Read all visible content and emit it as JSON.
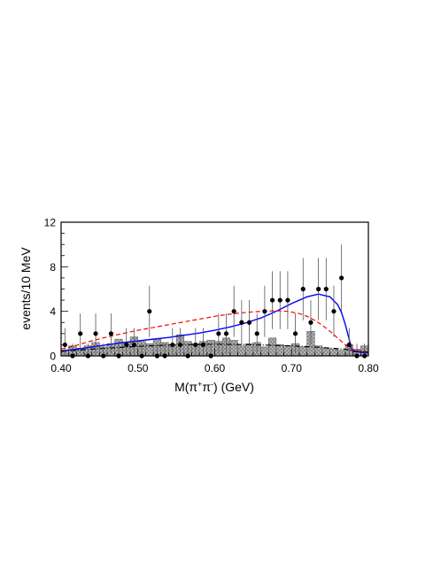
{
  "chart_data": {
    "type": "scatter",
    "xlabel": "M(π⁺π⁻) (GeV)",
    "xlabel_parts": {
      "pre": "M(π",
      "sup1": "+",
      "mid": "π",
      "sup2": "-",
      "post": ") (GeV)"
    },
    "ylabel": "events/10 MeV",
    "xlim": [
      0.4,
      0.8
    ],
    "ylim": [
      0,
      12
    ],
    "xticks": [
      {
        "value": 0.4,
        "label": "0.40"
      },
      {
        "value": 0.5,
        "label": "0.50"
      },
      {
        "value": 0.6,
        "label": "0.60"
      },
      {
        "value": 0.7,
        "label": "0.70"
      },
      {
        "value": 0.8,
        "label": "0.80"
      }
    ],
    "yticks": [
      {
        "value": 0,
        "label": "0"
      },
      {
        "value": 4,
        "label": "4"
      },
      {
        "value": 8,
        "label": "8"
      },
      {
        "value": 12,
        "label": "12"
      }
    ],
    "grid": false,
    "colors": {
      "total_fit": "#0000ff",
      "signal": "#ff0000",
      "background": "#000000",
      "histogram": "#b0b0b0",
      "data": "#000000"
    },
    "data_points": [
      {
        "x": 0.405,
        "y": 1,
        "err": 1.5
      },
      {
        "x": 0.415,
        "y": 0,
        "err": 1.1
      },
      {
        "x": 0.425,
        "y": 2,
        "err": 1.8
      },
      {
        "x": 0.435,
        "y": 0,
        "err": 1.1
      },
      {
        "x": 0.445,
        "y": 2,
        "err": 1.8
      },
      {
        "x": 0.455,
        "y": 0,
        "err": 1.1
      },
      {
        "x": 0.465,
        "y": 2,
        "err": 1.8
      },
      {
        "x": 0.475,
        "y": 0,
        "err": 1.1
      },
      {
        "x": 0.485,
        "y": 1,
        "err": 1.5
      },
      {
        "x": 0.495,
        "y": 1,
        "err": 1.5
      },
      {
        "x": 0.505,
        "y": 0,
        "err": 1.1
      },
      {
        "x": 0.515,
        "y": 4,
        "err": 2.3
      },
      {
        "x": 0.525,
        "y": 0,
        "err": 1.1
      },
      {
        "x": 0.535,
        "y": 0,
        "err": 1.1
      },
      {
        "x": 0.545,
        "y": 1,
        "err": 1.5
      },
      {
        "x": 0.555,
        "y": 1,
        "err": 1.5
      },
      {
        "x": 0.565,
        "y": 0,
        "err": 1.1
      },
      {
        "x": 0.575,
        "y": 1,
        "err": 1.5
      },
      {
        "x": 0.585,
        "y": 1,
        "err": 1.5
      },
      {
        "x": 0.595,
        "y": 0,
        "err": 1.1
      },
      {
        "x": 0.605,
        "y": 2,
        "err": 1.8
      },
      {
        "x": 0.615,
        "y": 2,
        "err": 1.8
      },
      {
        "x": 0.625,
        "y": 4,
        "err": 2.3
      },
      {
        "x": 0.635,
        "y": 3,
        "err": 2.0
      },
      {
        "x": 0.645,
        "y": 3,
        "err": 2.0
      },
      {
        "x": 0.655,
        "y": 2,
        "err": 1.8
      },
      {
        "x": 0.665,
        "y": 4,
        "err": 2.3
      },
      {
        "x": 0.675,
        "y": 5,
        "err": 2.6
      },
      {
        "x": 0.685,
        "y": 5,
        "err": 2.6
      },
      {
        "x": 0.695,
        "y": 5,
        "err": 2.6
      },
      {
        "x": 0.705,
        "y": 2,
        "err": 1.8
      },
      {
        "x": 0.715,
        "y": 6,
        "err": 2.8
      },
      {
        "x": 0.725,
        "y": 3,
        "err": 2.0
      },
      {
        "x": 0.735,
        "y": 6,
        "err": 2.8
      },
      {
        "x": 0.745,
        "y": 6,
        "err": 2.8
      },
      {
        "x": 0.755,
        "y": 4,
        "err": 2.3
      },
      {
        "x": 0.765,
        "y": 7,
        "err": 3.0
      },
      {
        "x": 0.775,
        "y": 1,
        "err": 1.5
      },
      {
        "x": 0.785,
        "y": 0,
        "err": 1.1
      },
      {
        "x": 0.795,
        "y": 0,
        "err": 1.1
      }
    ],
    "histogram": {
      "bin_width": 0.01,
      "x_start": 0.4,
      "values": [
        0.5,
        0.9,
        0.7,
        0.9,
        1.2,
        0.8,
        1.1,
        1.5,
        1.2,
        1.7,
        1.3,
        1.1,
        1.5,
        1.2,
        1.0,
        1.9,
        1.3,
        1.1,
        1.3,
        1.4,
        1.3,
        1.6,
        1.4,
        0.9,
        1.1,
        1.2,
        0.8,
        1.6,
        1.0,
        0.9,
        1.1,
        0.8,
        2.2,
        0.9,
        0.7,
        0.6,
        0.5,
        1.0,
        0.6,
        0.9
      ]
    },
    "curves": [
      {
        "style": "solid",
        "color": "#0000ff",
        "points": [
          [
            0.4,
            0.45
          ],
          [
            0.42,
            0.6
          ],
          [
            0.44,
            0.8
          ],
          [
            0.46,
            1.0
          ],
          [
            0.48,
            1.2
          ],
          [
            0.5,
            1.35
          ],
          [
            0.52,
            1.5
          ],
          [
            0.54,
            1.65
          ],
          [
            0.56,
            1.85
          ],
          [
            0.58,
            2.05
          ],
          [
            0.6,
            2.3
          ],
          [
            0.62,
            2.6
          ],
          [
            0.64,
            2.95
          ],
          [
            0.66,
            3.4
          ],
          [
            0.68,
            4.0
          ],
          [
            0.7,
            4.7
          ],
          [
            0.72,
            5.3
          ],
          [
            0.735,
            5.55
          ],
          [
            0.75,
            5.3
          ],
          [
            0.76,
            4.6
          ],
          [
            0.765,
            3.9
          ],
          [
            0.77,
            2.8
          ],
          [
            0.775,
            1.5
          ],
          [
            0.778,
            0.6
          ],
          [
            0.78,
            0.4
          ],
          [
            0.8,
            0.25
          ]
        ]
      },
      {
        "style": "dashed",
        "color": "#ff0000",
        "points": [
          [
            0.4,
            0.6
          ],
          [
            0.42,
            0.95
          ],
          [
            0.44,
            1.35
          ],
          [
            0.46,
            1.7
          ],
          [
            0.48,
            2.0
          ],
          [
            0.5,
            2.3
          ],
          [
            0.52,
            2.55
          ],
          [
            0.54,
            2.8
          ],
          [
            0.56,
            3.05
          ],
          [
            0.58,
            3.3
          ],
          [
            0.6,
            3.55
          ],
          [
            0.62,
            3.75
          ],
          [
            0.64,
            3.9
          ],
          [
            0.66,
            4.0
          ],
          [
            0.68,
            4.05
          ],
          [
            0.695,
            4.0
          ],
          [
            0.71,
            3.8
          ],
          [
            0.72,
            3.55
          ],
          [
            0.73,
            3.2
          ],
          [
            0.74,
            2.75
          ],
          [
            0.75,
            2.2
          ],
          [
            0.76,
            1.6
          ],
          [
            0.77,
            1.0
          ],
          [
            0.778,
            0.6
          ],
          [
            0.8,
            0.3
          ]
        ]
      },
      {
        "style": "dashdot",
        "color": "#000000",
        "points": [
          [
            0.4,
            0.4
          ],
          [
            0.45,
            0.65
          ],
          [
            0.5,
            0.85
          ],
          [
            0.55,
            1.0
          ],
          [
            0.6,
            1.05
          ],
          [
            0.65,
            1.0
          ],
          [
            0.7,
            0.9
          ],
          [
            0.73,
            0.8
          ],
          [
            0.75,
            0.7
          ],
          [
            0.77,
            0.6
          ],
          [
            0.78,
            0.45
          ],
          [
            0.8,
            0.35
          ]
        ]
      }
    ]
  }
}
